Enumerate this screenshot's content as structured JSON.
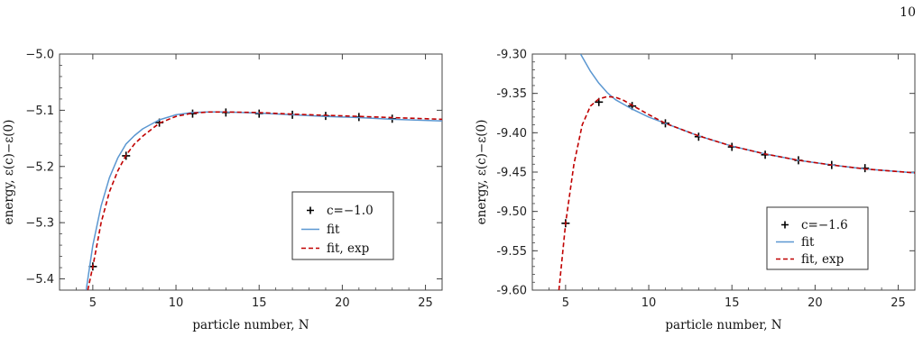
{
  "page_number": "10",
  "colors": {
    "fit": "#5b97d1",
    "fit_exp": "#c00000",
    "points": "#000000"
  },
  "chart_data": [
    {
      "type": "line",
      "title": "",
      "xlabel": "particle number, N",
      "ylabel": "energy, ε(c)−ε(0)",
      "xlim": [
        3,
        26
      ],
      "ylim": [
        -5.42,
        -5.0
      ],
      "xticks": [
        5,
        10,
        15,
        20,
        25
      ],
      "yticks": [
        -5.4,
        -5.3,
        -5.2,
        -5.1,
        -5.0
      ],
      "ytick_labels": [
        "−5.4",
        "−5.3",
        "−5.2",
        "−5.1",
        "−5.0"
      ],
      "legend_placement": "center-right",
      "series": [
        {
          "name": "c=−1.0",
          "kind": "points",
          "x": [
            5,
            7,
            9,
            11,
            13,
            15,
            17,
            19,
            21,
            23
          ],
          "y": [
            -5.378,
            -5.181,
            -5.122,
            -5.106,
            -5.104,
            -5.106,
            -5.108,
            -5.11,
            -5.112,
            -5.115
          ]
        },
        {
          "name": "fit",
          "kind": "line",
          "x": [
            4.6,
            5,
            5.5,
            6,
            6.5,
            7,
            7.5,
            8,
            9,
            10,
            11,
            12,
            13,
            15,
            17,
            19,
            21,
            23,
            26
          ],
          "y": [
            -5.42,
            -5.34,
            -5.27,
            -5.22,
            -5.185,
            -5.16,
            -5.145,
            -5.133,
            -5.117,
            -5.108,
            -5.104,
            -5.103,
            -5.103,
            -5.105,
            -5.108,
            -5.111,
            -5.113,
            -5.116,
            -5.119
          ]
        },
        {
          "name": "fit, exp",
          "kind": "dashed",
          "x": [
            4.7,
            5,
            5.5,
            6,
            6.5,
            7,
            7.5,
            8,
            9,
            10,
            11,
            12,
            13,
            15,
            17,
            19,
            21,
            23,
            26
          ],
          "y": [
            -5.42,
            -5.378,
            -5.3,
            -5.245,
            -5.208,
            -5.18,
            -5.16,
            -5.146,
            -5.123,
            -5.111,
            -5.105,
            -5.103,
            -5.103,
            -5.104,
            -5.107,
            -5.109,
            -5.111,
            -5.113,
            -5.116
          ]
        }
      ]
    },
    {
      "type": "line",
      "title": "",
      "xlabel": "particle number, N",
      "ylabel": "energy, ε(c)−ε(0)",
      "xlim": [
        3,
        26
      ],
      "ylim": [
        -9.6,
        -9.3
      ],
      "xticks": [
        5,
        10,
        15,
        20,
        25
      ],
      "yticks": [
        -9.6,
        -9.55,
        -9.5,
        -9.45,
        -9.4,
        -9.35,
        -9.3
      ],
      "ytick_labels": [
        "-9.60",
        "-9.55",
        "-9.50",
        "-9.45",
        "-9.40",
        "-9.35",
        "-9.30"
      ],
      "legend_placement": "bottom-right",
      "series": [
        {
          "name": "c=−1.6",
          "kind": "points",
          "x": [
            5,
            7,
            9,
            11,
            13,
            15,
            17,
            19,
            21,
            23
          ],
          "y": [
            -9.515,
            -9.361,
            -9.366,
            -9.388,
            -9.405,
            -9.418,
            -9.428,
            -9.435,
            -9.441,
            -9.445
          ]
        },
        {
          "name": "fit",
          "kind": "line",
          "x": [
            5.9,
            6.5,
            7,
            7.5,
            8,
            8.5,
            9,
            10,
            11,
            13,
            15,
            17,
            19,
            21,
            23,
            26
          ],
          "y": [
            -9.3,
            -9.322,
            -9.337,
            -9.349,
            -9.358,
            -9.364,
            -9.37,
            -9.38,
            -9.388,
            -9.404,
            -9.417,
            -9.427,
            -9.435,
            -9.441,
            -9.446,
            -9.451
          ]
        },
        {
          "name": "fit, exp",
          "kind": "dashed",
          "x": [
            4.6,
            5,
            5.5,
            6,
            6.5,
            7,
            7.5,
            8,
            8.5,
            9,
            10,
            11,
            13,
            15,
            17,
            19,
            21,
            23,
            26
          ],
          "y": [
            -9.6,
            -9.515,
            -9.44,
            -9.39,
            -9.366,
            -9.357,
            -9.354,
            -9.355,
            -9.359,
            -9.365,
            -9.377,
            -9.388,
            -9.404,
            -9.417,
            -9.427,
            -9.435,
            -9.441,
            -9.446,
            -9.451
          ]
        }
      ]
    }
  ]
}
